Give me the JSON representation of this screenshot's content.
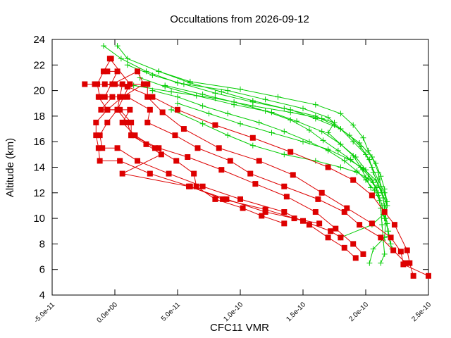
{
  "chart_data": {
    "type": "line",
    "title": "Occultations from 2026-09-12",
    "xlabel": "CFC11 VMR",
    "ylabel": "Altitude (km)",
    "xlim": [
      -5e-11,
      2.5e-10
    ],
    "ylim": [
      4,
      24
    ],
    "x_ticks": [
      "-5.0e-11",
      "0.0e+00",
      "5.0e-11",
      "1.0e-10",
      "1.5e-10",
      "2.0e-10",
      "2.5e-10"
    ],
    "x_tick_values": [
      -5e-11,
      0,
      5e-11,
      1e-10,
      1.5e-10,
      2e-10,
      2.5e-10
    ],
    "y_ticks": [
      "4",
      "6",
      "8",
      "10",
      "12",
      "14",
      "16",
      "18",
      "20",
      "22",
      "24"
    ],
    "y_tick_values": [
      4,
      6,
      8,
      10,
      12,
      14,
      16,
      18,
      20,
      22,
      24
    ],
    "grid": false,
    "colors": {
      "green_series": "#00cc00",
      "red_series": "#dd0000"
    },
    "series": [
      {
        "marker": "plus",
        "color": "#00cc00",
        "points": [
          [
            -9e-12,
            23.5
          ],
          [
            5e-12,
            22.5
          ],
          [
            2.5e-11,
            21.5
          ],
          [
            5e-11,
            20.6
          ],
          [
            9e-11,
            20.0
          ],
          [
            1.2e-10,
            19.3
          ],
          [
            1.5e-10,
            18.6
          ],
          [
            1.7e-10,
            17.9
          ],
          [
            1.8e-10,
            17.0
          ],
          [
            1.9e-10,
            16.0
          ],
          [
            2e-10,
            15.0
          ],
          [
            2.05e-10,
            14.0
          ],
          [
            2.1e-10,
            13.0
          ],
          [
            2.15e-10,
            12.0
          ],
          [
            2.17e-10,
            11.0
          ],
          [
            2.15e-10,
            10.0
          ],
          [
            2.18e-10,
            9.0
          ],
          [
            2.2e-10,
            8.0
          ]
        ]
      },
      {
        "marker": "plus",
        "color": "#00cc00",
        "points": [
          [
            2e-12,
            23.5
          ],
          [
            1e-11,
            22.5
          ],
          [
            3.5e-11,
            21.5
          ],
          [
            6e-11,
            20.7
          ],
          [
            1e-10,
            20.1
          ],
          [
            1.3e-10,
            19.5
          ],
          [
            1.6e-10,
            18.9
          ],
          [
            1.8e-10,
            18.2
          ],
          [
            1.9e-10,
            17.3
          ],
          [
            1.98e-10,
            16.3
          ],
          [
            2.02e-10,
            15.3
          ],
          [
            2.08e-10,
            14.3
          ],
          [
            2.12e-10,
            13.3
          ],
          [
            2.15e-10,
            12.3
          ],
          [
            2.17e-10,
            11.3
          ],
          [
            2.14e-10,
            10.3
          ],
          [
            2.05e-10,
            9.5
          ],
          [
            1.8e-10,
            8.5
          ]
        ]
      },
      {
        "marker": "plus",
        "color": "#00cc00",
        "points": [
          [
            1e-11,
            22.0
          ],
          [
            3e-11,
            21.2
          ],
          [
            5.5e-11,
            20.5
          ],
          [
            8e-11,
            19.8
          ],
          [
            1.1e-10,
            19.1
          ],
          [
            1.4e-10,
            18.5
          ],
          [
            1.6e-10,
            17.8
          ],
          [
            1.8e-10,
            17.0
          ],
          [
            1.95e-10,
            15.9
          ],
          [
            2.05e-10,
            14.8
          ],
          [
            2.1e-10,
            13.6
          ],
          [
            2.12e-10,
            12.5
          ],
          [
            2.15e-10,
            11.0
          ],
          [
            2.16e-10,
            10.0
          ],
          [
            2.15e-10,
            8.5
          ],
          [
            2.06e-10,
            7.6
          ],
          [
            2.03e-10,
            6.5
          ]
        ]
      },
      {
        "marker": "plus",
        "color": "#00cc00",
        "points": [
          [
            2e-11,
            21.0
          ],
          [
            4e-11,
            20.3
          ],
          [
            6.5e-11,
            19.6
          ],
          [
            9.5e-11,
            18.9
          ],
          [
            1.25e-10,
            18.3
          ],
          [
            1.45e-10,
            17.6
          ],
          [
            1.65e-10,
            16.8
          ],
          [
            1.8e-10,
            15.8
          ],
          [
            1.92e-10,
            14.8
          ],
          [
            2e-10,
            13.8
          ],
          [
            2.06e-10,
            12.8
          ],
          [
            2.1e-10,
            11.8
          ],
          [
            2.12e-10,
            10.8
          ],
          [
            2.13e-10,
            9.5
          ],
          [
            2.14e-10,
            8.3
          ],
          [
            2.15e-10,
            7.2
          ],
          [
            2.12e-10,
            6.5
          ]
        ]
      },
      {
        "marker": "plus",
        "color": "#00cc00",
        "points": [
          [
            3.5e-11,
            21.5
          ],
          [
            6e-11,
            20.6
          ],
          [
            8.5e-11,
            19.9
          ],
          [
            1.1e-10,
            19.2
          ],
          [
            1.35e-10,
            18.6
          ],
          [
            1.6e-10,
            18.0
          ],
          [
            1.75e-10,
            17.3
          ],
          [
            1.87e-10,
            16.5
          ],
          [
            1.96e-10,
            15.6
          ],
          [
            2.03e-10,
            14.6
          ],
          [
            2.06e-10,
            13.6
          ],
          [
            2.1e-10,
            12.6
          ],
          [
            2.14e-10,
            11.6
          ],
          [
            2.15e-10,
            10.6
          ],
          [
            2.17e-10,
            9.6
          ],
          [
            2.18e-10,
            8.6
          ],
          [
            2.21e-10,
            7.6
          ]
        ]
      },
      {
        "marker": "plus",
        "color": "#00cc00",
        "points": [
          [
            4e-11,
            20.4
          ],
          [
            7e-11,
            19.7
          ],
          [
            9.5e-11,
            19.1
          ],
          [
            1.2e-10,
            18.4
          ],
          [
            1.4e-10,
            17.7
          ],
          [
            1.55e-10,
            16.9
          ],
          [
            1.66e-10,
            16.1
          ],
          [
            1.78e-10,
            15.3
          ],
          [
            1.88e-10,
            14.6
          ],
          [
            1.98e-10,
            13.8
          ],
          [
            2.05e-10,
            13.0
          ],
          [
            2.1e-10,
            12.0
          ],
          [
            2.13e-10,
            11.0
          ],
          [
            2.15e-10,
            10.0
          ]
        ]
      },
      {
        "marker": "plus",
        "color": "#00cc00",
        "points": [
          [
            3e-11,
            20.0
          ],
          [
            5e-11,
            19.5
          ],
          [
            7e-11,
            18.8
          ],
          [
            9e-11,
            18.2
          ],
          [
            1.15e-10,
            17.5
          ],
          [
            1.35e-10,
            16.8
          ],
          [
            1.55e-10,
            16.0
          ],
          [
            1.7e-10,
            15.3
          ],
          [
            1.83e-10,
            14.5
          ],
          [
            1.93e-10,
            13.7
          ],
          [
            2e-10,
            13.0
          ],
          [
            2.07e-10,
            12.2
          ],
          [
            2.11e-10,
            11.4
          ]
        ]
      },
      {
        "marker": "plus",
        "color": "#00cc00",
        "points": [
          [
            1.5e-11,
            20.4
          ],
          [
            4.5e-11,
            19.9
          ],
          [
            8e-11,
            19.4
          ],
          [
            1.1e-10,
            18.8
          ],
          [
            1.4e-10,
            18.3
          ],
          [
            1.65e-10,
            17.8
          ],
          [
            1.75e-10,
            17.5
          ],
          [
            1.7e-10,
            16.7
          ],
          [
            1.8e-10,
            15.8
          ],
          [
            1.9e-10,
            14.9
          ],
          [
            1.96e-10,
            14.0
          ],
          [
            2e-10,
            13.2
          ],
          [
            2.04e-10,
            12.4
          ]
        ]
      },
      {
        "marker": "plus",
        "color": "#00cc00",
        "points": [
          [
            5e-11,
            19.0
          ],
          [
            7.5e-11,
            18.2
          ],
          [
            1e-10,
            17.4
          ],
          [
            1.25e-10,
            16.7
          ],
          [
            1.5e-10,
            16.0
          ],
          [
            1.7e-10,
            15.4
          ],
          [
            1.85e-10,
            14.7
          ],
          [
            1.98e-10,
            13.9
          ],
          [
            2.08e-10,
            13.0
          ],
          [
            2.13e-10,
            12.0
          ],
          [
            2.17e-10,
            11.0
          ]
        ]
      },
      {
        "marker": "plus",
        "color": "#00cc00",
        "points": [
          [
            4.5e-11,
            18.5
          ],
          [
            7e-11,
            17.4
          ],
          [
            9e-11,
            16.5
          ],
          [
            1.1e-10,
            15.7
          ],
          [
            1.35e-10,
            15.0
          ],
          [
            1.6e-10,
            14.5
          ],
          [
            1.8e-10,
            14.0
          ],
          [
            1.93e-10,
            13.6
          ],
          [
            2.02e-10,
            13.1
          ],
          [
            2.09e-10,
            12.4
          ]
        ]
      }
    ],
    "red_series": [
      {
        "marker": "square",
        "color": "#dd0000",
        "points": [
          [
            -2.4e-11,
            20.5
          ],
          [
            -8e-12,
            20.5
          ],
          [
            1e-11,
            20.3
          ],
          [
            3e-11,
            19.5
          ],
          [
            5e-11,
            18.5
          ],
          [
            8e-11,
            17.3
          ],
          [
            1.1e-10,
            16.3
          ],
          [
            1.4e-10,
            15.2
          ],
          [
            1.7e-10,
            14.0
          ],
          [
            1.9e-10,
            13.0
          ],
          [
            2.05e-10,
            11.8
          ],
          [
            2.15e-10,
            10.5
          ],
          [
            2.23e-10,
            9.5
          ],
          [
            2.33e-10,
            7.5
          ],
          [
            2.35e-10,
            6.5
          ],
          [
            2.38e-10,
            5.5
          ]
        ]
      },
      {
        "marker": "square",
        "color": "#dd0000",
        "points": [
          [
            -1.6e-11,
            20.5
          ],
          [
            0.0,
            20.5
          ],
          [
            2.6e-11,
            20.5
          ],
          [
            2.6e-11,
            19.5
          ],
          [
            3.8e-11,
            18.3
          ],
          [
            5.5e-11,
            17.0
          ],
          [
            8.3e-11,
            15.5
          ],
          [
            1.15e-10,
            14.5
          ],
          [
            1.42e-10,
            13.4
          ],
          [
            1.65e-10,
            12.0
          ],
          [
            1.85e-10,
            10.8
          ],
          [
            2.05e-10,
            9.6
          ],
          [
            2.2e-10,
            8.5
          ],
          [
            2.28e-10,
            7.4
          ],
          [
            2.3e-10,
            6.4
          ],
          [
            2.5e-10,
            5.5
          ]
        ]
      },
      {
        "marker": "square",
        "color": "#dd0000",
        "points": [
          [
            -6e-12,
            21.5
          ],
          [
            2e-12,
            21.5
          ],
          [
            -8e-12,
            19.5
          ],
          [
            1e-11,
            19.5
          ],
          [
            2.8e-11,
            18.5
          ],
          [
            2.6e-11,
            17.5
          ],
          [
            4.8e-11,
            16.5
          ],
          [
            6.6e-11,
            15.5
          ],
          [
            9.2e-11,
            14.5
          ],
          [
            1.08e-10,
            13.5
          ],
          [
            1.35e-10,
            12.5
          ],
          [
            1.62e-10,
            11.5
          ],
          [
            1.83e-10,
            10.5
          ],
          [
            1.95e-10,
            9.5
          ],
          [
            2.12e-10,
            8.5
          ],
          [
            2.22e-10,
            7.5
          ],
          [
            2.32e-10,
            6.5
          ]
        ]
      },
      {
        "marker": "square",
        "color": "#dd0000",
        "points": [
          [
            -3e-12,
            22.5
          ],
          [
            -9e-12,
            21.5
          ],
          [
            -1.4e-11,
            20.5
          ],
          [
            -1.2e-11,
            19.5
          ],
          [
            -2e-12,
            19.5
          ],
          [
            -1.1e-11,
            18.5
          ],
          [
            4e-12,
            18.5
          ],
          [
            1.3e-11,
            17.5
          ],
          [
            1.3e-11,
            16.5
          ],
          [
            3.5e-11,
            15.5
          ],
          [
            5.8e-11,
            14.8
          ],
          [
            8.5e-11,
            13.8
          ],
          [
            1.12e-10,
            12.7
          ],
          [
            1.37e-10,
            11.7
          ],
          [
            1.6e-10,
            10.5
          ],
          [
            1.76e-10,
            9.2
          ],
          [
            1.9e-10,
            8.0
          ],
          [
            1.98e-10,
            7.2
          ]
        ]
      },
      {
        "marker": "square",
        "color": "#dd0000",
        "points": [
          [
            -4e-12,
            22.5
          ],
          [
            1.2e-11,
            20.5
          ],
          [
            2e-12,
            18.5
          ],
          [
            -6e-12,
            17.5
          ],
          [
            -1.2e-11,
            16.5
          ],
          [
            -1e-11,
            15.5
          ],
          [
            2e-12,
            15.5
          ],
          [
            1.8e-11,
            14.5
          ],
          [
            4.3e-11,
            13.5
          ],
          [
            7e-11,
            12.5
          ],
          [
            1e-10,
            11.5
          ],
          [
            1.35e-10,
            10.5
          ],
          [
            1.55e-10,
            9.5
          ],
          [
            1.7e-10,
            8.5
          ],
          [
            1.83e-10,
            7.7
          ],
          [
            1.92e-10,
            6.9
          ]
        ]
      },
      {
        "marker": "square",
        "color": "#dd0000",
        "points": [
          [
            -1.3e-11,
            19.5
          ],
          [
            -6e-12,
            18.5
          ],
          [
            -1.5e-11,
            17.5
          ],
          [
            -1.5e-11,
            16.5
          ],
          [
            -1.3e-11,
            15.5
          ],
          [
            -1.2e-11,
            14.5
          ],
          [
            4e-12,
            14.5
          ],
          [
            2.8e-11,
            13.5
          ],
          [
            6e-11,
            12.5
          ],
          [
            8.6e-11,
            11.5
          ],
          [
            1.2e-10,
            10.7
          ],
          [
            1.5e-10,
            9.8
          ],
          [
            1.72e-10,
            9.0
          ],
          [
            1.8e-10,
            8.5
          ]
        ]
      },
      {
        "marker": "square",
        "color": "#dd0000",
        "points": [
          [
            -2e-12,
            20.5
          ],
          [
            1.8e-11,
            21.5
          ],
          [
            2.3e-11,
            20.5
          ],
          [
            6e-12,
            19.5
          ],
          [
            -6e-12,
            18.5
          ],
          [
            1.2e-11,
            18.5
          ],
          [
            6e-12,
            17.5
          ],
          [
            1.6e-11,
            16.5
          ],
          [
            3.2e-11,
            15.5
          ],
          [
            4.9e-11,
            14.5
          ],
          [
            6.3e-11,
            13.5
          ],
          [
            6.5e-11,
            12.5
          ],
          [
            8e-11,
            11.5
          ],
          [
            1.02e-10,
            10.8
          ],
          [
            1.17e-10,
            10.2
          ],
          [
            1.35e-10,
            9.6
          ]
        ]
      },
      {
        "marker": "square",
        "color": "#dd0000",
        "points": [
          [
            6e-12,
            20.5
          ],
          [
            4e-12,
            19.5
          ],
          [
            2e-12,
            18.5
          ],
          [
            1e-11,
            17.5
          ],
          [
            1.3e-11,
            16.5
          ],
          [
            2.5e-11,
            15.8
          ],
          [
            3.7e-11,
            15.0
          ],
          [
            6e-12,
            13.5
          ],
          [
            5.9e-11,
            12.5
          ],
          [
            8.9e-11,
            11.5
          ],
          [
            1.2e-10,
            10.5
          ],
          [
            1.43e-10,
            10.0
          ],
          [
            1.63e-10,
            9.6
          ]
        ]
      }
    ]
  }
}
